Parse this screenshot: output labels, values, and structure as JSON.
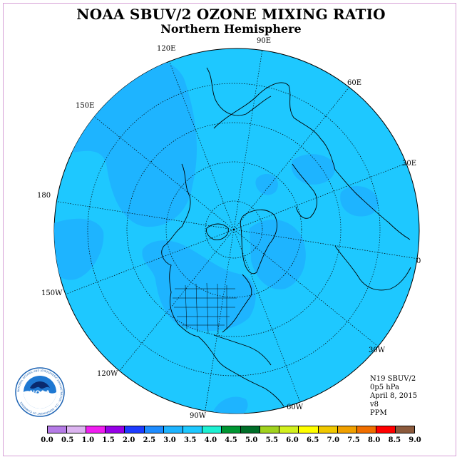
{
  "title": "NOAA SBUV/2 OZONE MIXING RATIO",
  "subtitle": "Northern Hemisphere",
  "longitude_labels": [
    {
      "text": "90E",
      "name": "lon-label-90e"
    },
    {
      "text": "60E",
      "name": "lon-label-60e"
    },
    {
      "text": "30E",
      "name": "lon-label-30e"
    },
    {
      "text": "0",
      "name": "lon-label-0"
    },
    {
      "text": "30W",
      "name": "lon-label-30w"
    },
    {
      "text": "60W",
      "name": "lon-label-60w"
    },
    {
      "text": "90W",
      "name": "lon-label-90w"
    },
    {
      "text": "120W",
      "name": "lon-label-120w"
    },
    {
      "text": "150W",
      "name": "lon-label-150w"
    },
    {
      "text": "180",
      "name": "lon-label-180"
    },
    {
      "text": "150E",
      "name": "lon-label-150e"
    },
    {
      "text": "120E",
      "name": "lon-label-120e"
    }
  ],
  "info": {
    "satellite": "N19 SBUV/2",
    "level": "0p5 hPa",
    "date": "April 8, 2015",
    "version": "v8",
    "units": "PPM"
  },
  "colorbar": {
    "colors": [
      "#b57be6",
      "#dcb4f0",
      "#f01ef0",
      "#9600e6",
      "#1e3cff",
      "#1e8cff",
      "#1eb4ff",
      "#1ec8ff",
      "#1ef0d2",
      "#009632",
      "#006e28",
      "#a0d21e",
      "#d2f01e",
      "#ffff00",
      "#f0c800",
      "#f0a000",
      "#f06e00",
      "#ff0000",
      "#8c5a3c"
    ],
    "ticks": [
      "0.0",
      "0.5",
      "1.0",
      "1.5",
      "2.0",
      "2.5",
      "3.0",
      "3.5",
      "4.0",
      "4.5",
      "5.0",
      "5.5",
      "6.0",
      "6.5",
      "7.0",
      "7.5",
      "8.0",
      "8.5",
      "9.0"
    ]
  },
  "map_colors": {
    "background": "#1ec8ff",
    "patches": "#1eb4ff"
  },
  "logo": {
    "text": "NOAA",
    "ring_text": "NATIONAL OCEANIC AND ATMOSPHERIC ADMINISTRATION · U.S. DEPARTMENT OF COMMERCE"
  }
}
